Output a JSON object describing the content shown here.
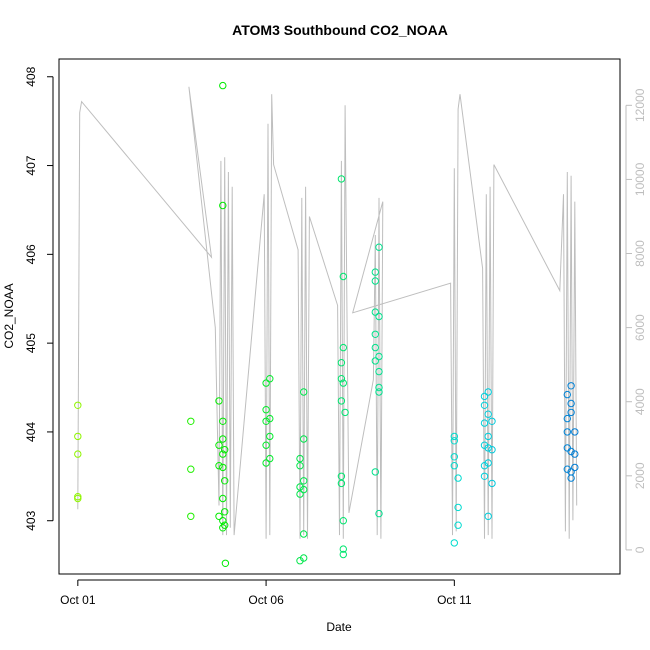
{
  "chart_data": {
    "type": "scatter",
    "title": "ATOM3 Southbound CO2_NOAA",
    "xlabel": "Date",
    "ylabel": "CO2_NOAA",
    "x_ticks": [
      {
        "label": "Oct 01",
        "day": 1
      },
      {
        "label": "Oct 06",
        "day": 6
      },
      {
        "label": "Oct 11",
        "day": 11
      }
    ],
    "xlim_days": [
      0.5,
      15.4
    ],
    "ylim": [
      402.4,
      408.2
    ],
    "y_ticks": [
      403,
      404,
      405,
      406,
      407,
      408
    ],
    "y2_ticks": [
      0,
      2000,
      4000,
      6000,
      8000,
      10000,
      12000
    ],
    "y2lim": [
      -650,
      13250
    ],
    "secondary_axis_color": "#bebebe",
    "secondary_series_name": "",
    "point_style": "open circle, color by date (green to blue)",
    "points": [
      [
        1.0,
        404.3
      ],
      [
        1.0,
        403.95
      ],
      [
        1.0,
        403.75
      ],
      [
        1.0,
        403.25
      ],
      [
        1.0,
        403.27
      ],
      [
        4.0,
        404.12
      ],
      [
        4.0,
        403.58
      ],
      [
        4.0,
        403.05
      ],
      [
        4.75,
        404.35
      ],
      [
        4.75,
        403.85
      ],
      [
        4.75,
        403.62
      ],
      [
        4.75,
        403.05
      ],
      [
        4.85,
        406.55
      ],
      [
        4.85,
        404.12
      ],
      [
        4.85,
        403.92
      ],
      [
        4.85,
        403.75
      ],
      [
        4.85,
        403.6
      ],
      [
        4.85,
        403.25
      ],
      [
        4.85,
        403.0
      ],
      [
        4.85,
        402.92
      ],
      [
        4.85,
        407.9
      ],
      [
        4.9,
        403.8
      ],
      [
        4.9,
        403.45
      ],
      [
        4.9,
        403.1
      ],
      [
        4.9,
        402.95
      ],
      [
        4.92,
        402.52
      ],
      [
        6.0,
        404.55
      ],
      [
        6.0,
        404.25
      ],
      [
        6.0,
        404.12
      ],
      [
        6.0,
        403.85
      ],
      [
        6.0,
        403.65
      ],
      [
        6.1,
        404.6
      ],
      [
        6.1,
        404.15
      ],
      [
        6.1,
        403.95
      ],
      [
        6.1,
        403.7
      ],
      [
        6.9,
        403.7
      ],
      [
        6.9,
        403.62
      ],
      [
        6.9,
        403.38
      ],
      [
        6.9,
        403.3
      ],
      [
        6.9,
        402.55
      ],
      [
        7.0,
        404.45
      ],
      [
        7.0,
        403.92
      ],
      [
        7.0,
        403.45
      ],
      [
        7.0,
        403.35
      ],
      [
        7.0,
        402.85
      ],
      [
        7.0,
        402.58
      ],
      [
        8.0,
        406.85
      ],
      [
        8.0,
        404.78
      ],
      [
        8.0,
        404.6
      ],
      [
        8.0,
        404.35
      ],
      [
        8.0,
        403.5
      ],
      [
        8.0,
        403.42
      ],
      [
        8.05,
        405.75
      ],
      [
        8.05,
        404.95
      ],
      [
        8.05,
        404.55
      ],
      [
        8.05,
        403.0
      ],
      [
        8.05,
        402.68
      ],
      [
        8.05,
        402.62
      ],
      [
        8.1,
        404.22
      ],
      [
        8.9,
        405.8
      ],
      [
        8.9,
        405.7
      ],
      [
        8.9,
        405.35
      ],
      [
        8.9,
        405.1
      ],
      [
        8.9,
        404.95
      ],
      [
        8.9,
        404.8
      ],
      [
        8.9,
        403.55
      ],
      [
        9.0,
        406.08
      ],
      [
        9.0,
        405.3
      ],
      [
        9.0,
        404.85
      ],
      [
        9.0,
        404.68
      ],
      [
        9.0,
        404.5
      ],
      [
        9.0,
        404.45
      ],
      [
        9.0,
        403.08
      ],
      [
        11.0,
        403.95
      ],
      [
        11.0,
        403.9
      ],
      [
        11.0,
        403.72
      ],
      [
        11.0,
        403.62
      ],
      [
        11.0,
        402.75
      ],
      [
        11.1,
        403.48
      ],
      [
        11.1,
        403.15
      ],
      [
        11.1,
        402.95
      ],
      [
        11.8,
        404.4
      ],
      [
        11.8,
        404.3
      ],
      [
        11.8,
        404.1
      ],
      [
        11.8,
        403.85
      ],
      [
        11.8,
        403.62
      ],
      [
        11.8,
        403.5
      ],
      [
        11.9,
        404.45
      ],
      [
        11.9,
        404.2
      ],
      [
        11.9,
        403.95
      ],
      [
        11.9,
        403.82
      ],
      [
        11.9,
        403.65
      ],
      [
        11.9,
        403.05
      ],
      [
        12.0,
        404.12
      ],
      [
        12.0,
        403.8
      ],
      [
        12.0,
        403.42
      ],
      [
        14.0,
        404.42
      ],
      [
        14.0,
        404.15
      ],
      [
        14.0,
        404.0
      ],
      [
        14.0,
        403.82
      ],
      [
        14.0,
        403.58
      ],
      [
        14.1,
        404.52
      ],
      [
        14.1,
        404.32
      ],
      [
        14.1,
        404.22
      ],
      [
        14.1,
        403.78
      ],
      [
        14.1,
        403.55
      ],
      [
        14.1,
        403.48
      ],
      [
        14.2,
        404.0
      ],
      [
        14.2,
        403.75
      ],
      [
        14.2,
        403.6
      ]
    ],
    "secondary_line": [
      [
        1.0,
        1100
      ],
      [
        1.05,
        11800
      ],
      [
        1.1,
        12100
      ],
      [
        4.55,
        7900
      ],
      [
        3.95,
        12500
      ],
      [
        4.65,
        6000
      ],
      [
        4.75,
        1200
      ],
      [
        4.8,
        10500
      ],
      [
        4.85,
        400
      ],
      [
        4.9,
        10600
      ],
      [
        4.95,
        400
      ],
      [
        5.0,
        10200
      ],
      [
        5.05,
        600
      ],
      [
        5.1,
        9800
      ],
      [
        5.15,
        400
      ],
      [
        5.95,
        9600
      ],
      [
        6.0,
        300
      ],
      [
        6.05,
        11500
      ],
      [
        6.1,
        400
      ],
      [
        6.15,
        12300
      ],
      [
        6.2,
        10400
      ],
      [
        6.85,
        8100
      ],
      [
        6.9,
        300
      ],
      [
        6.95,
        9500
      ],
      [
        7.0,
        400
      ],
      [
        7.05,
        9800
      ],
      [
        7.1,
        300
      ],
      [
        7.15,
        9000
      ],
      [
        7.9,
        6600
      ],
      [
        7.95,
        400
      ],
      [
        8.0,
        10500
      ],
      [
        8.05,
        300
      ],
      [
        8.1,
        12000
      ],
      [
        8.15,
        6300
      ],
      [
        8.2,
        1000
      ],
      [
        8.85,
        4600
      ],
      [
        8.9,
        8500
      ],
      [
        8.95,
        400
      ],
      [
        9.0,
        9500
      ],
      [
        9.05,
        300
      ],
      [
        9.1,
        9400
      ],
      [
        8.3,
        6400
      ],
      [
        10.9,
        7200
      ],
      [
        10.95,
        400
      ],
      [
        11.0,
        10300
      ],
      [
        11.05,
        500
      ],
      [
        11.1,
        11900
      ],
      [
        11.15,
        12300
      ],
      [
        11.75,
        7600
      ],
      [
        11.8,
        300
      ],
      [
        11.85,
        9600
      ],
      [
        11.9,
        400
      ],
      [
        11.95,
        9800
      ],
      [
        12.0,
        300
      ],
      [
        12.05,
        10400
      ],
      [
        13.8,
        7000
      ],
      [
        13.9,
        9600
      ],
      [
        13.95,
        500
      ],
      [
        14.0,
        10200
      ],
      [
        14.05,
        300
      ],
      [
        14.1,
        10100
      ],
      [
        14.15,
        800
      ],
      [
        14.2,
        9400
      ],
      [
        14.25,
        1200
      ]
    ]
  }
}
